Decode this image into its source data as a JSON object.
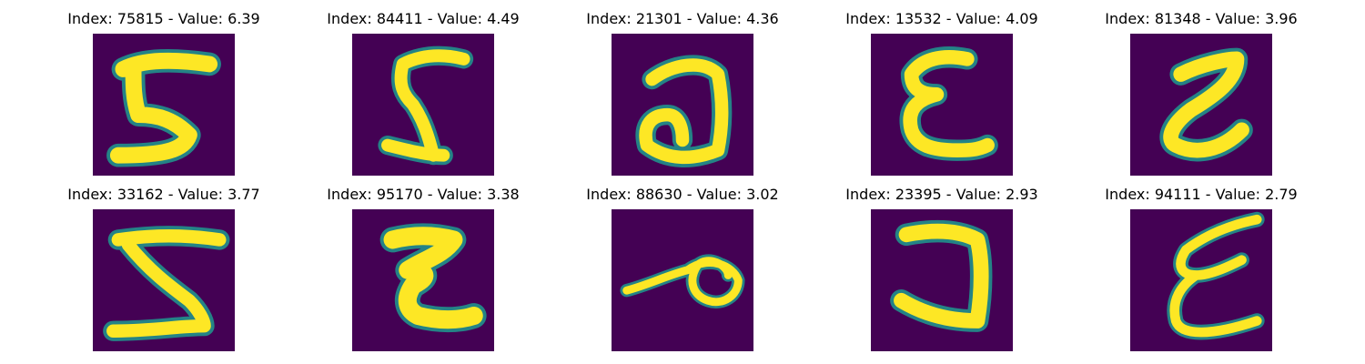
{
  "colors": {
    "background": "#440154",
    "stroke_edge": "#21918c",
    "stroke_mid": "#5ec962",
    "stroke_core": "#fde725"
  },
  "panels": [
    {
      "index": "75815",
      "value": "6.39",
      "title": "Index: 75815 - Value: 6.39",
      "glyph": "mirrored-5"
    },
    {
      "index": "84411",
      "value": "4.49",
      "title": "Index: 84411 - Value: 4.49",
      "glyph": "mirrored-2"
    },
    {
      "index": "21301",
      "value": "4.36",
      "title": "Index: 21301 - Value: 4.36",
      "glyph": "mirrored-6"
    },
    {
      "index": "13532",
      "value": "4.09",
      "title": "Index: 13532 - Value: 4.09",
      "glyph": "mirrored-3"
    },
    {
      "index": "81348",
      "value": "3.96",
      "title": "Index: 81348 - Value: 3.96",
      "glyph": "mirrored-2"
    },
    {
      "index": "33162",
      "value": "3.77",
      "title": "Index: 33162 - Value: 3.77",
      "glyph": "mirrored-2"
    },
    {
      "index": "95170",
      "value": "3.38",
      "title": "Index: 95170 - Value: 3.38",
      "glyph": "mirrored-3"
    },
    {
      "index": "88630",
      "value": "3.02",
      "title": "Index: 88630 - Value: 3.02",
      "glyph": "loop-shape"
    },
    {
      "index": "23395",
      "value": "2.93",
      "title": "Index: 23395 - Value: 2.93",
      "glyph": "mirrored-c"
    },
    {
      "index": "94111",
      "value": "2.79",
      "title": "Index: 94111 - Value: 2.79",
      "glyph": "mirrored-3"
    }
  ]
}
